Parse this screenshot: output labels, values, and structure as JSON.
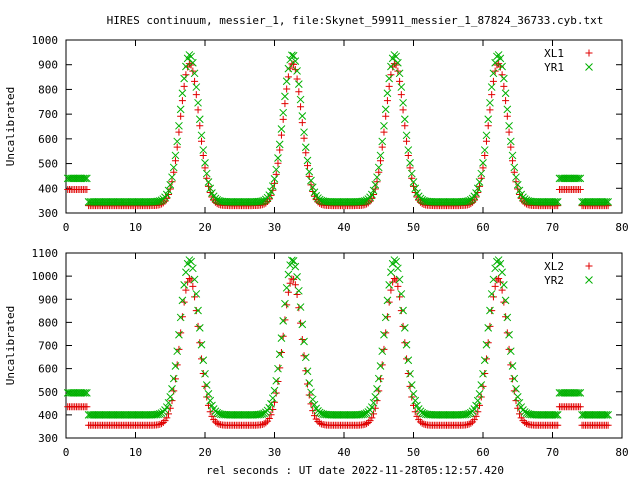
{
  "chart_data": [
    {
      "type": "scatter",
      "title": "HIRES continuum, messier_1, file:Skynet_59911_messier_1_87824_36733.cyb.txt",
      "xlabel": "",
      "ylabel": "Uncalibrated",
      "xlim": [
        0,
        80
      ],
      "ylim": [
        300,
        1000
      ],
      "xticks": [
        "0",
        "10",
        "20",
        "30",
        "40",
        "50",
        "60",
        "70",
        "80"
      ],
      "yticks": [
        "300",
        "400",
        "500",
        "600",
        "700",
        "800",
        "900",
        "1000"
      ],
      "grid": false,
      "legend": "top-right",
      "series": [
        {
          "name": "XL1",
          "marker": "+",
          "color": "#e00000",
          "base": 330,
          "peak": 905,
          "edge": 395
        },
        {
          "name": "YR1",
          "marker": "x",
          "color": "#00b000",
          "base": 345,
          "peak": 940,
          "edge": 440
        }
      ],
      "peak_x": [
        17.8,
        32.6,
        47.3,
        62.2
      ],
      "edge_ranges": [
        [
          0,
          3
        ],
        [
          71,
          74
        ]
      ]
    },
    {
      "type": "scatter",
      "title": "",
      "xlabel": "rel seconds : UT date 2022-11-28T05:12:57.420",
      "ylabel": "Uncalibrated",
      "xlim": [
        0,
        80
      ],
      "ylim": [
        300,
        1100
      ],
      "xticks": [
        "0",
        "10",
        "20",
        "30",
        "40",
        "50",
        "60",
        "70",
        "80"
      ],
      "yticks": [
        "300",
        "400",
        "500",
        "600",
        "700",
        "800",
        "900",
        "1000",
        "1100"
      ],
      "grid": false,
      "legend": "top-right",
      "series": [
        {
          "name": "XL2",
          "marker": "+",
          "color": "#e00000",
          "base": 355,
          "peak": 990,
          "edge": 435
        },
        {
          "name": "YR2",
          "marker": "x",
          "color": "#00b000",
          "base": 400,
          "peak": 1070,
          "edge": 495
        }
      ],
      "peak_x": [
        17.8,
        32.6,
        47.3,
        62.2
      ],
      "edge_ranges": [
        [
          0,
          3
        ],
        [
          71,
          74
        ]
      ]
    }
  ]
}
